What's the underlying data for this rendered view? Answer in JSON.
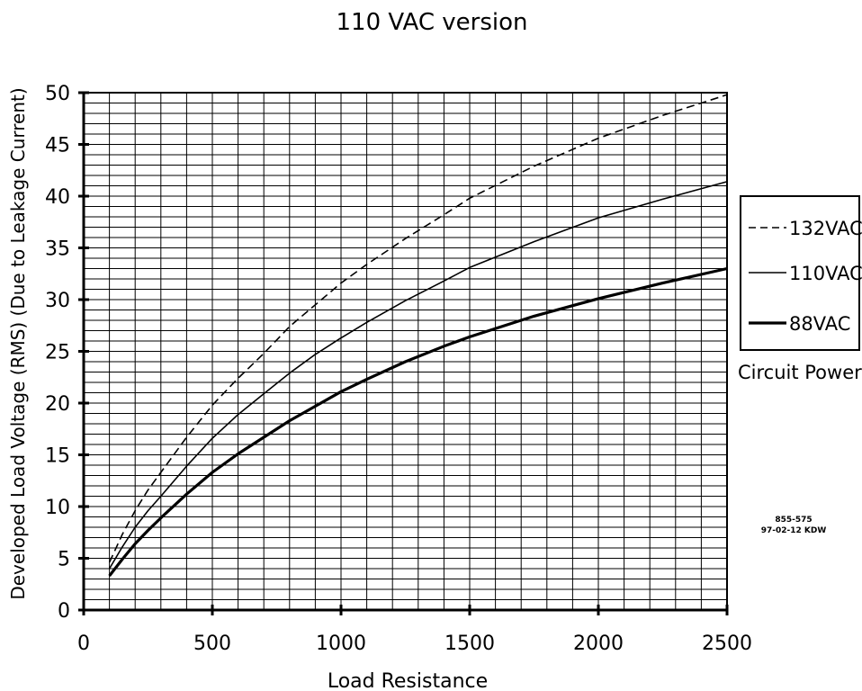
{
  "chart_data": {
    "type": "line",
    "title": "110 VAC version",
    "xlabel": "Load Resistance",
    "ylabel": "Developed Load Voltage (RMS) (Due to Leakage Current)",
    "xlim": [
      0,
      2500
    ],
    "ylim": [
      0,
      50
    ],
    "x_ticks": [
      "0",
      "500",
      "1000",
      "1500",
      "2000",
      "2500"
    ],
    "y_ticks": [
      "0",
      "5",
      "10",
      "15",
      "20",
      "25",
      "30",
      "35",
      "40",
      "45",
      "50"
    ],
    "grid": true,
    "legend": {
      "placement": "right",
      "caption": "Circuit Power",
      "entries": [
        "132VAC",
        "110VAC",
        "88VAC"
      ]
    },
    "series": [
      {
        "name": "132VAC",
        "style": "dashed",
        "x": [
          100,
          150,
          200,
          250,
          300,
          400,
          500,
          600,
          700,
          800,
          900,
          1000,
          1100,
          1250,
          1400,
          1500,
          1750,
          2000,
          2250,
          2500
        ],
        "y": [
          4.6,
          7.3,
          9.6,
          11.6,
          13.3,
          16.7,
          19.8,
          22.4,
          24.8,
          27.4,
          29.5,
          31.6,
          33.4,
          35.9,
          38.2,
          39.8,
          42.9,
          45.6,
          47.8,
          49.8
        ]
      },
      {
        "name": "110VAC",
        "style": "solid",
        "x": [
          100,
          150,
          200,
          250,
          300,
          400,
          500,
          600,
          700,
          800,
          900,
          1000,
          1100,
          1250,
          1400,
          1500,
          1750,
          2000,
          2250,
          2500
        ],
        "y": [
          4.0,
          6.1,
          8.0,
          9.6,
          11.0,
          13.9,
          16.6,
          18.9,
          20.9,
          22.9,
          24.7,
          26.3,
          27.8,
          29.9,
          31.8,
          33.1,
          35.6,
          37.9,
          39.7,
          41.4
        ]
      },
      {
        "name": "88VAC",
        "style": "thick",
        "x": [
          100,
          150,
          200,
          250,
          300,
          400,
          500,
          600,
          700,
          800,
          900,
          1000,
          1100,
          1250,
          1400,
          1500,
          1750,
          2000,
          2250,
          2500
        ],
        "y": [
          3.3,
          4.9,
          6.4,
          7.7,
          8.9,
          11.2,
          13.3,
          15.1,
          16.7,
          18.3,
          19.7,
          21.1,
          22.3,
          24.0,
          25.5,
          26.4,
          28.4,
          30.1,
          31.6,
          33.0
        ]
      }
    ]
  },
  "annotation": {
    "line1": "855-575",
    "line2": "97-02-12 KDW"
  }
}
